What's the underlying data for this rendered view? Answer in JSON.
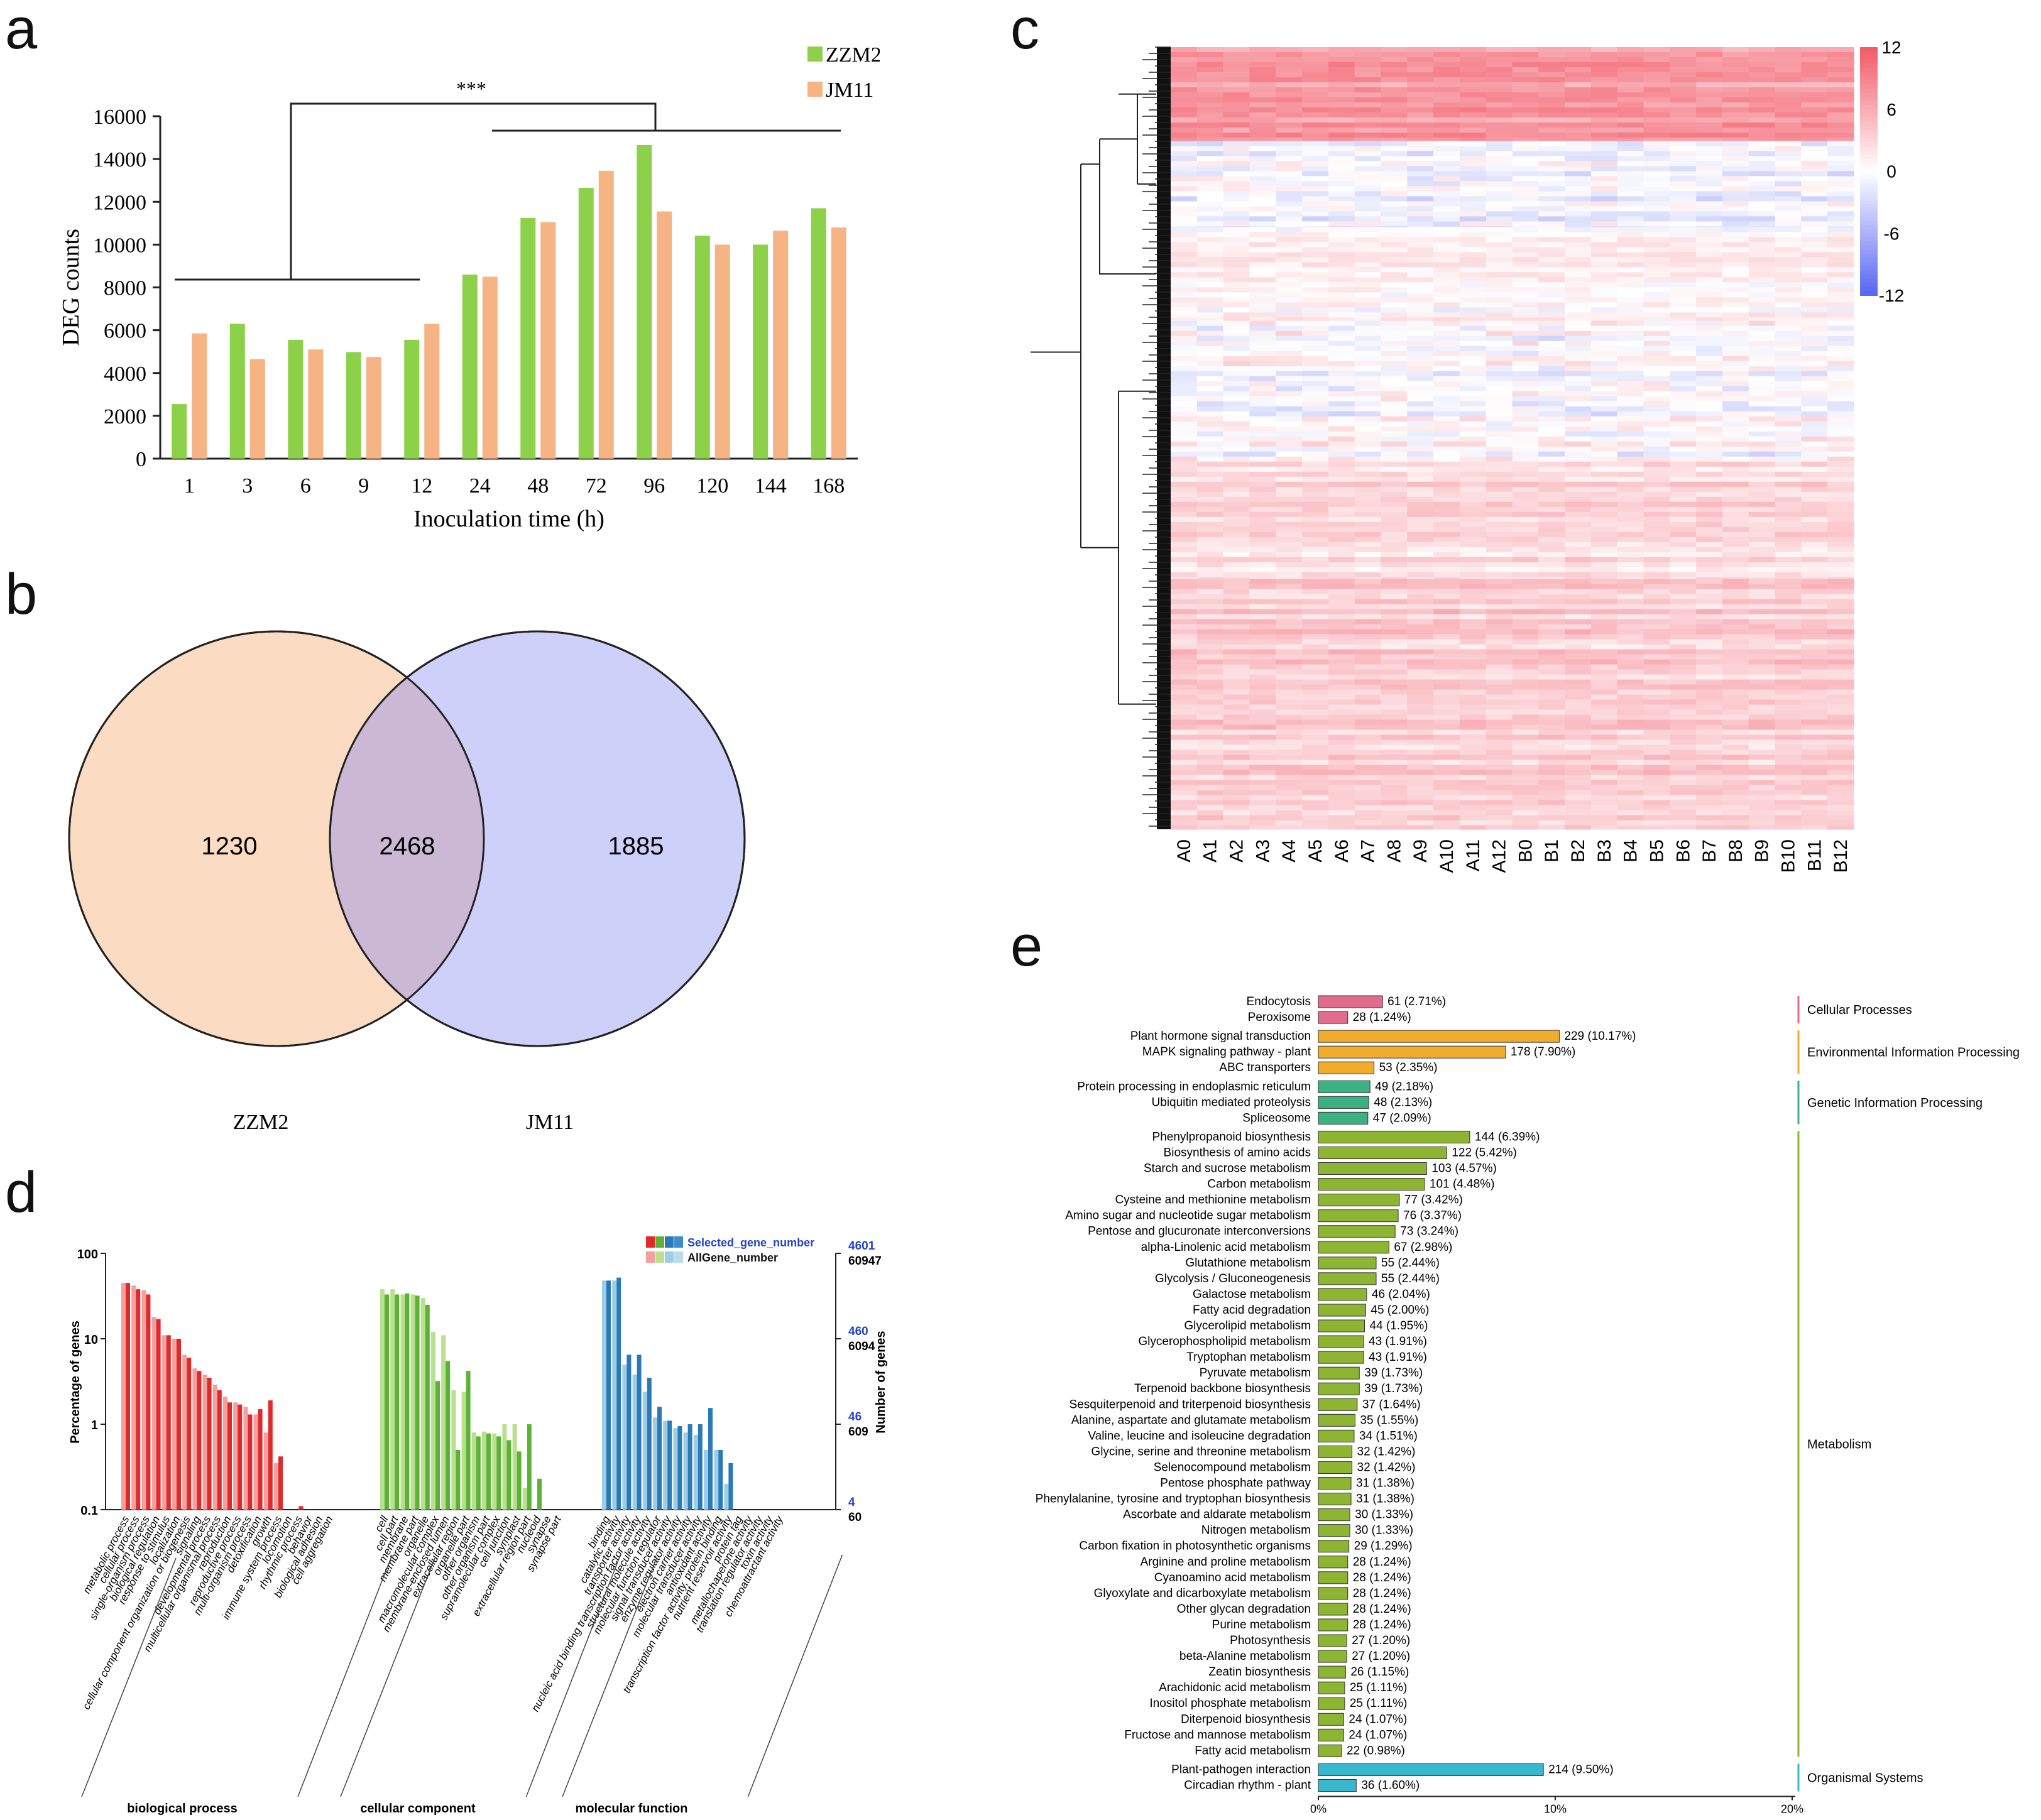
{
  "panel_labels": {
    "a": "a",
    "b": "b",
    "c": "c",
    "d": "d",
    "e": "e"
  },
  "colors": {
    "zzm2": "#8dd14a",
    "jm11": "#f6b384",
    "venn_left": "#fbdcc2",
    "venn_right": "#cdd0f8",
    "venn_overlap": "#cbb8d4",
    "heat_pos": "#f25c6a",
    "heat_neg": "#5a68f2",
    "bp": "#e02a2a",
    "bp_light": "#f2a0a0",
    "cc": "#5cb236",
    "cc_light": "#b8e08e",
    "mf": "#2a7ab8",
    "mf_light": "#9ecde6",
    "kegg_cell": "#e36b8d",
    "kegg_env": "#f2ac2b",
    "kegg_gen": "#3ab283",
    "kegg_met": "#8db532",
    "kegg_org": "#38b7cf"
  },
  "chart_data": [
    {
      "id": "a",
      "type": "bar",
      "title": "",
      "xlabel": "Inoculation time (h)",
      "ylabel": "DEG counts",
      "categories": [
        "1",
        "3",
        "6",
        "9",
        "12",
        "24",
        "48",
        "72",
        "96",
        "120",
        "144",
        "168"
      ],
      "series": [
        {
          "name": "ZZM2",
          "values": [
            2550,
            6300,
            5550,
            4980,
            5550,
            8600,
            11250,
            12650,
            14650,
            10420,
            10000,
            11700
          ]
        },
        {
          "name": "JM11",
          "values": [
            5850,
            4650,
            5100,
            4750,
            6300,
            8500,
            11050,
            13450,
            11550,
            10000,
            10650,
            10800
          ]
        }
      ],
      "ylim": [
        0,
        16000
      ],
      "yticks": [
        "0",
        "2000",
        "4000",
        "6000",
        "8000",
        "10000",
        "12000",
        "14000",
        "16000"
      ],
      "annotation": "***"
    },
    {
      "id": "b",
      "type": "venn",
      "sets": [
        {
          "name": "ZZM2",
          "only": "1230"
        },
        {
          "name": "JM11",
          "only": "1885"
        }
      ],
      "overlap": "2468"
    },
    {
      "id": "c",
      "type": "heatmap",
      "columns": [
        "A0",
        "A1",
        "A2",
        "A3",
        "A4",
        "A5",
        "A6",
        "A7",
        "A8",
        "A9",
        "A10",
        "A11",
        "A12",
        "B0",
        "B1",
        "B2",
        "B3",
        "B4",
        "B5",
        "B6",
        "B7",
        "B8",
        "B9",
        "B10",
        "B11",
        "B12"
      ],
      "colorbar": {
        "range": [
          -12,
          12
        ],
        "ticks": [
          "12",
          "6",
          "0",
          "-6",
          "-12"
        ]
      },
      "row_blocks": [
        {
          "frac": 0.12,
          "level": 0.62
        },
        {
          "frac": 0.11,
          "level": -0.05
        },
        {
          "frac": 0.12,
          "level": 0.05
        },
        {
          "frac": 0.18,
          "level": 0.02
        },
        {
          "frac": 0.15,
          "level": 0.22
        },
        {
          "frac": 0.32,
          "level": 0.3
        }
      ]
    },
    {
      "id": "d",
      "type": "bar",
      "ylabel_left": "Percentage of genes",
      "ylabel_right": "Number of genes",
      "yticks_left": [
        "100",
        "10",
        "1",
        "0.1"
      ],
      "right_selected_ticks": [
        "4601",
        "460",
        "46",
        "4"
      ],
      "right_all_ticks": [
        "60947",
        "6094",
        "609",
        "60"
      ],
      "legend": [
        "Selected_gene_number",
        "AllGene_number"
      ],
      "ylim_log": [
        0.1,
        100
      ],
      "groups": [
        {
          "name": "biological process",
          "categories": [
            "metabolic process",
            "cellular process",
            "single-organism process",
            "biological regulation",
            "response to stimulus",
            "localization",
            "cellular component organization or biogenesis",
            "signaling",
            "developmental process",
            "multicellular organismal process",
            "reproduction",
            "reproductive process",
            "multi-organism process",
            "detoxification",
            "growth",
            "immune system process",
            "locomotion",
            "rhythmic process",
            "behavior",
            "biological adhesion",
            "cell aggregation"
          ],
          "selected": [
            45,
            38,
            33,
            17,
            11,
            10,
            6,
            4.2,
            3.5,
            2.5,
            1.8,
            1.7,
            1.3,
            1.5,
            1.9,
            0.42,
            0,
            0.11,
            0,
            0,
            0
          ],
          "all": [
            45,
            42,
            37,
            18,
            11,
            10,
            6.5,
            4.5,
            3.8,
            2.9,
            2.1,
            1.8,
            1.6,
            1.3,
            0.8,
            0.35,
            0,
            0.1,
            0,
            0,
            0
          ]
        },
        {
          "name": "cellular component",
          "categories": [
            "cell",
            "cell part",
            "membrane",
            "membrane part",
            "organelle",
            "macromolecular complex",
            "membrane-enclosed lumen",
            "extracellular region",
            "organelle part",
            "other organism",
            "other organism part",
            "supramolecular complex",
            "cell junction",
            "symplast",
            "extracellular region part",
            "nucleoid",
            "synapse",
            "synapse part"
          ],
          "selected": [
            33,
            33,
            34,
            32,
            25,
            3.2,
            5.5,
            0.5,
            4.2,
            0.72,
            0.78,
            0.72,
            0.65,
            0.48,
            1.0,
            0.23,
            0,
            0
          ],
          "all": [
            38,
            38,
            33,
            33,
            30,
            12,
            11,
            2.5,
            2.4,
            0.8,
            0.82,
            0.78,
            1.0,
            1.0,
            0.18,
            0,
            0,
            0
          ]
        },
        {
          "name": "molecular function",
          "categories": [
            "binding",
            "catalytic activity",
            "transporter activity",
            "nucleic acid binding transcription factor activity",
            "structural molecule activity",
            "molecular function regulator",
            "signal transducer activity",
            "enzyme regulator activity",
            "electron carrier activity",
            "molecular transducer activity",
            "antioxidant activity",
            "transcription factor activity, protein binding",
            "nutrient reservoir activity",
            "protein tag",
            "metallochaperone activity",
            "translation regulator activity",
            "toxin activity",
            "chemoattractant activity"
          ],
          "selected": [
            48,
            52,
            6.5,
            6.5,
            3.5,
            1.6,
            1.1,
            0.95,
            1.0,
            1.0,
            1.55,
            0.5,
            0.35,
            0,
            0,
            0,
            0,
            0
          ],
          "all": [
            48,
            48,
            5.0,
            3.8,
            2.4,
            1.2,
            1.1,
            0.9,
            0.8,
            0.75,
            0.5,
            0.5,
            0.2,
            0,
            0,
            0,
            0,
            0
          ]
        }
      ]
    },
    {
      "id": "e",
      "type": "bar",
      "orientation": "horizontal",
      "xticks": [
        "0%",
        "10%",
        "20%"
      ],
      "xlim": [
        0,
        20
      ],
      "categories_groups": [
        {
          "name": "Cellular Processes",
          "color": "#e36b8d",
          "items": [
            {
              "label": "Endocytosis",
              "count": 61,
              "pct": 2.71,
              "text": "61 (2.71%)"
            },
            {
              "label": "Peroxisome",
              "count": 28,
              "pct": 1.24,
              "text": "28 (1.24%)"
            }
          ]
        },
        {
          "name": "Environmental Information Processing",
          "color": "#f2ac2b",
          "items": [
            {
              "label": "Plant hormone signal transduction",
              "count": 229,
              "pct": 10.17,
              "text": "229 (10.17%)"
            },
            {
              "label": "MAPK signaling pathway - plant",
              "count": 178,
              "pct": 7.9,
              "text": "178 (7.90%)"
            },
            {
              "label": "ABC transporters",
              "count": 53,
              "pct": 2.35,
              "text": "53 (2.35%)"
            }
          ]
        },
        {
          "name": "Genetic Information Processing",
          "color": "#3ab283",
          "items": [
            {
              "label": "Protein processing in endoplasmic reticulum",
              "count": 49,
              "pct": 2.18,
              "text": "49 (2.18%)"
            },
            {
              "label": "Ubiquitin mediated proteolysis",
              "count": 48,
              "pct": 2.13,
              "text": "48 (2.13%)"
            },
            {
              "label": "Spliceosome",
              "count": 47,
              "pct": 2.09,
              "text": "47 (2.09%)"
            }
          ]
        },
        {
          "name": "Metabolism",
          "color": "#8db532",
          "items": [
            {
              "label": "Phenylpropanoid biosynthesis",
              "count": 144,
              "pct": 6.39,
              "text": "144 (6.39%)"
            },
            {
              "label": "Biosynthesis of amino acids",
              "count": 122,
              "pct": 5.42,
              "text": "122 (5.42%)"
            },
            {
              "label": "Starch and sucrose metabolism",
              "count": 103,
              "pct": 4.57,
              "text": "103 (4.57%)"
            },
            {
              "label": "Carbon metabolism",
              "count": 101,
              "pct": 4.48,
              "text": "101 (4.48%)"
            },
            {
              "label": "Cysteine and methionine metabolism",
              "count": 77,
              "pct": 3.42,
              "text": "77 (3.42%)"
            },
            {
              "label": "Amino sugar and nucleotide sugar metabolism",
              "count": 76,
              "pct": 3.37,
              "text": "76 (3.37%)"
            },
            {
              "label": "Pentose and glucuronate interconversions",
              "count": 73,
              "pct": 3.24,
              "text": "73 (3.24%)"
            },
            {
              "label": "alpha-Linolenic acid metabolism",
              "count": 67,
              "pct": 2.98,
              "text": "67 (2.98%)"
            },
            {
              "label": "Glutathione metabolism",
              "count": 55,
              "pct": 2.44,
              "text": "55 (2.44%)"
            },
            {
              "label": "Glycolysis / Gluconeogenesis",
              "count": 55,
              "pct": 2.44,
              "text": "55 (2.44%)"
            },
            {
              "label": "Galactose metabolism",
              "count": 46,
              "pct": 2.04,
              "text": "46 (2.04%)"
            },
            {
              "label": "Fatty acid degradation",
              "count": 45,
              "pct": 2.0,
              "text": "45 (2.00%)"
            },
            {
              "label": "Glycerolipid metabolism",
              "count": 44,
              "pct": 1.95,
              "text": "44 (1.95%)"
            },
            {
              "label": "Glycerophospholipid metabolism",
              "count": 43,
              "pct": 1.91,
              "text": "43 (1.91%)"
            },
            {
              "label": "Tryptophan metabolism",
              "count": 43,
              "pct": 1.91,
              "text": "43 (1.91%)"
            },
            {
              "label": "Pyruvate metabolism",
              "count": 39,
              "pct": 1.73,
              "text": "39 (1.73%)"
            },
            {
              "label": "Terpenoid backbone biosynthesis",
              "count": 39,
              "pct": 1.73,
              "text": "39 (1.73%)"
            },
            {
              "label": "Sesquiterpenoid and triterpenoid biosynthesis",
              "count": 37,
              "pct": 1.64,
              "text": "37 (1.64%)"
            },
            {
              "label": "Alanine, aspartate and glutamate metabolism",
              "count": 35,
              "pct": 1.55,
              "text": "35 (1.55%)"
            },
            {
              "label": "Valine, leucine and isoleucine degradation",
              "count": 34,
              "pct": 1.51,
              "text": "34 (1.51%)"
            },
            {
              "label": "Glycine, serine and threonine metabolism",
              "count": 32,
              "pct": 1.42,
              "text": "32 (1.42%)"
            },
            {
              "label": "Selenocompound metabolism",
              "count": 32,
              "pct": 1.42,
              "text": "32 (1.42%)"
            },
            {
              "label": "Pentose phosphate pathway",
              "count": 31,
              "pct": 1.38,
              "text": "31 (1.38%)"
            },
            {
              "label": "Phenylalanine, tyrosine and tryptophan biosynthesis",
              "count": 31,
              "pct": 1.38,
              "text": "31 (1.38%)"
            },
            {
              "label": "Ascorbate and aldarate metabolism",
              "count": 30,
              "pct": 1.33,
              "text": "30 (1.33%)"
            },
            {
              "label": "Nitrogen metabolism",
              "count": 30,
              "pct": 1.33,
              "text": "30 (1.33%)"
            },
            {
              "label": "Carbon fixation in photosynthetic organisms",
              "count": 29,
              "pct": 1.29,
              "text": "29 (1.29%)"
            },
            {
              "label": "Arginine and proline metabolism",
              "count": 28,
              "pct": 1.24,
              "text": "28 (1.24%)"
            },
            {
              "label": "Cyanoamino acid metabolism",
              "count": 28,
              "pct": 1.24,
              "text": "28 (1.24%)"
            },
            {
              "label": "Glyoxylate and dicarboxylate metabolism",
              "count": 28,
              "pct": 1.24,
              "text": "28 (1.24%)"
            },
            {
              "label": "Other glycan degradation",
              "count": 28,
              "pct": 1.24,
              "text": "28 (1.24%)"
            },
            {
              "label": "Purine metabolism",
              "count": 28,
              "pct": 1.24,
              "text": "28 (1.24%)"
            },
            {
              "label": "Photosynthesis",
              "count": 27,
              "pct": 1.2,
              "text": "27 (1.20%)"
            },
            {
              "label": "beta-Alanine metabolism",
              "count": 27,
              "pct": 1.2,
              "text": "27 (1.20%)"
            },
            {
              "label": "Zeatin biosynthesis",
              "count": 26,
              "pct": 1.15,
              "text": "26 (1.15%)"
            },
            {
              "label": "Arachidonic acid metabolism",
              "count": 25,
              "pct": 1.11,
              "text": "25 (1.11%)"
            },
            {
              "label": "Inositol phosphate metabolism",
              "count": 25,
              "pct": 1.11,
              "text": "25 (1.11%)"
            },
            {
              "label": "Diterpenoid biosynthesis",
              "count": 24,
              "pct": 1.07,
              "text": "24 (1.07%)"
            },
            {
              "label": "Fructose and mannose metabolism",
              "count": 24,
              "pct": 1.07,
              "text": "24 (1.07%)"
            },
            {
              "label": "Fatty acid metabolism",
              "count": 22,
              "pct": 0.98,
              "text": "22 (0.98%)"
            }
          ]
        },
        {
          "name": "Organismal Systems",
          "color": "#38b7cf",
          "items": [
            {
              "label": "Plant-pathogen interaction",
              "count": 214,
              "pct": 9.5,
              "text": "214 (9.50%)"
            },
            {
              "label": "Circadian rhythm - plant",
              "count": 36,
              "pct": 1.6,
              "text": "36 (1.60%)"
            }
          ]
        }
      ]
    }
  ]
}
